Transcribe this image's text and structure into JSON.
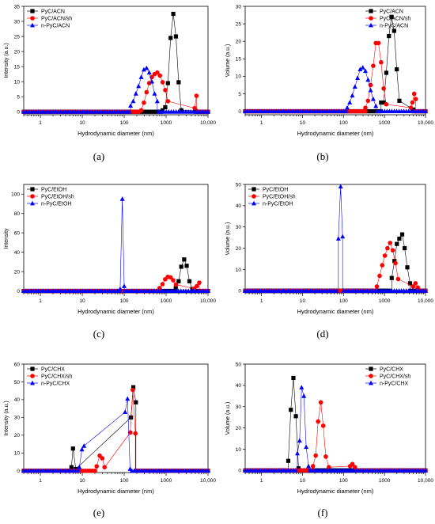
{
  "chart_data": [
    {
      "type": "scatter",
      "panel_label": "(a)",
      "xlabel": "Hydrodynamic diameter (nm)",
      "ylabel": "Intensity (a.u.)",
      "x_scale": "log",
      "xlim": [
        0.4,
        10000
      ],
      "ylim": [
        -1,
        35
      ],
      "x_ticks": [
        1,
        10,
        100,
        1000,
        10000
      ],
      "x_tick_labels": [
        "1",
        "10",
        "100",
        "1000",
        "10,000"
      ],
      "y_ticks": [
        0,
        5,
        10,
        15,
        20,
        25,
        30,
        35
      ],
      "legend_position": "top-left",
      "series": [
        {
          "name": "PyC/ACN",
          "color": "#000000",
          "marker": "square",
          "x": [
            825,
            955,
            1106,
            1281,
            1484,
            1718,
            1990,
            2305,
            5000
          ],
          "y": [
            0.5,
            1.5,
            9.5,
            24.5,
            32.5,
            25.0,
            9.8,
            0.5,
            0.3
          ]
        },
        {
          "name": "PyC/ACN/sh",
          "color": "#ff0000",
          "marker": "circle",
          "x": [
            255,
            295,
            342,
            396,
            458,
            531,
            615,
            712,
            825,
            955,
            1106,
            4800,
            5300
          ],
          "y": [
            0.5,
            3.0,
            6.5,
            9.5,
            11.5,
            12.5,
            13.0,
            12.0,
            9.8,
            7.2,
            3.5,
            1.2,
            5.3
          ]
        },
        {
          "name": "n-PyC/ACN",
          "color": "#0000ff",
          "marker": "triangle",
          "x": [
            142,
            164,
            190,
            220,
            255,
            295,
            342,
            396,
            458,
            531,
            615
          ],
          "y": [
            2.0,
            3.5,
            6.0,
            8.5,
            11.5,
            14.0,
            14.5,
            13.0,
            10.0,
            6.0,
            3.5
          ]
        }
      ]
    },
    {
      "type": "scatter",
      "panel_label": "(b)",
      "xlabel": "Hydrodynamic diameter (nm)",
      "ylabel": "Volume (a.u.)",
      "x_scale": "log",
      "xlim": [
        0.4,
        10000
      ],
      "ylim": [
        -1,
        30
      ],
      "x_ticks": [
        1,
        10,
        100,
        1000,
        10000
      ],
      "x_tick_labels": [
        "1",
        "10",
        "100",
        "1000",
        "10,000"
      ],
      "y_ticks": [
        0,
        5,
        10,
        15,
        20,
        25,
        30
      ],
      "legend_position": "top-right",
      "series": [
        {
          "name": "PyC/ACN",
          "color": "#000000",
          "marker": "square",
          "x": [
            825,
            955,
            1106,
            1281,
            1484,
            1718,
            1990,
            2305,
            5000
          ],
          "y": [
            2.5,
            2.5,
            11.0,
            21.5,
            27.0,
            23.0,
            12.0,
            3.0,
            0.5
          ]
        },
        {
          "name": "PyC/ACN/sh",
          "color": "#ff0000",
          "marker": "circle",
          "x": [
            342,
            396,
            458,
            531,
            615,
            712,
            825,
            955,
            1106,
            4400,
            4800,
            5300,
            5800
          ],
          "y": [
            1.0,
            3.0,
            7.5,
            13.0,
            19.5,
            19.5,
            14.0,
            6.5,
            2.0,
            1.0,
            2.5,
            5.0,
            3.5
          ]
        },
        {
          "name": "n-PyC/ACN",
          "color": "#0000ff",
          "marker": "triangle",
          "x": [
            123,
            142,
            164,
            190,
            220,
            255,
            295,
            342,
            396,
            458,
            531,
            615
          ],
          "y": [
            1.0,
            2.5,
            4.5,
            7.0,
            9.5,
            12.0,
            12.5,
            11.5,
            9.0,
            6.0,
            3.5,
            1.5
          ]
        }
      ]
    },
    {
      "type": "scatter",
      "panel_label": "(c)",
      "xlabel": "Hydrodynamic diameter (nm)",
      "ylabel": "Intensity",
      "x_scale": "log",
      "xlim": [
        0.4,
        10000
      ],
      "ylim": [
        -2,
        110
      ],
      "x_ticks": [
        1,
        10,
        100,
        1000,
        10000
      ],
      "x_tick_labels": [
        "1",
        "10",
        "100",
        "1000",
        "10,000"
      ],
      "y_ticks": [
        0,
        20,
        40,
        60,
        80,
        100
      ],
      "legend_position": "top-left",
      "series": [
        {
          "name": "PyC/EtOH",
          "color": "#000000",
          "marker": "square",
          "x": [
            1700,
            1990,
            2300,
            2700,
            3100,
            3600,
            4200
          ],
          "y": [
            3.0,
            10.0,
            25.0,
            32.5,
            26.0,
            10.0,
            2.0
          ]
        },
        {
          "name": "PyC/EtOH/sh",
          "color": "#ff0000",
          "marker": "circle",
          "x": [
            700,
            820,
            950,
            1100,
            1280,
            1480,
            1720,
            4700,
            5400,
            6200
          ],
          "y": [
            3.0,
            7.0,
            12.0,
            14.5,
            14.0,
            11.0,
            6.5,
            2.5,
            5.0,
            8.5
          ]
        },
        {
          "name": "n-PyC/EtOH",
          "color": "#0000ff",
          "marker": "triangle",
          "x": [
            80,
            90,
            100
          ],
          "y": [
            2.0,
            95.0,
            5.0
          ]
        }
      ]
    },
    {
      "type": "scatter",
      "panel_label": "(d)",
      "xlabel": "Hydrodynamic diameter (nm)",
      "ylabel": "Volume (a.u.)",
      "x_scale": "log",
      "xlim": [
        0.4,
        10000
      ],
      "ylim": [
        -1,
        50
      ],
      "x_ticks": [
        1,
        10,
        100,
        1000,
        10000
      ],
      "x_tick_labels": [
        "1",
        "10",
        "100",
        "1000",
        "10,000"
      ],
      "y_ticks": [
        0,
        10,
        20,
        30,
        40,
        50
      ],
      "legend_position": "top-left",
      "series": [
        {
          "name": "PyC/EtOH",
          "color": "#000000",
          "marker": "square",
          "x": [
            1500,
            1750,
            2000,
            2300,
            2700,
            3100,
            3600,
            4200
          ],
          "y": [
            6.0,
            14.0,
            22.0,
            24.5,
            26.5,
            20.0,
            11.0,
            3.5
          ]
        },
        {
          "name": "PyC/EtOH/sh",
          "color": "#ff0000",
          "marker": "circle",
          "x": [
            650,
            760,
            880,
            1020,
            1180,
            1370,
            1590,
            1850,
            2150,
            5000,
            5700,
            6500
          ],
          "y": [
            2.0,
            7.0,
            12.0,
            16.5,
            20.0,
            22.5,
            19.0,
            13.0,
            5.5,
            2.0,
            3.5,
            1.5
          ]
        },
        {
          "name": "n-PyC/EtOH",
          "color": "#0000ff",
          "marker": "triangle",
          "x": [
            75,
            85,
            95
          ],
          "y": [
            24.5,
            49.0,
            25.5
          ]
        }
      ]
    },
    {
      "type": "scatter",
      "panel_label": "(e)",
      "xlabel": "Hydrodynamic diameter (nm)",
      "ylabel": "Intensity (a.u.)",
      "x_scale": "log",
      "xlim": [
        0.4,
        10000
      ],
      "ylim": [
        -1,
        60
      ],
      "x_ticks": [
        1,
        10,
        100,
        1000,
        10000
      ],
      "x_tick_labels": [
        "1",
        "10",
        "100",
        "1000",
        "10,000"
      ],
      "y_ticks": [
        0,
        10,
        20,
        30,
        40,
        50,
        60
      ],
      "legend_position": "top-left",
      "series": [
        {
          "name": "PyC/CHX",
          "color": "#000000",
          "marker": "square",
          "x": [
            5.5,
            6.0,
            7.0,
            145,
            165,
            190
          ],
          "y": [
            2.0,
            12.5,
            1.0,
            30.0,
            47.0,
            38.5
          ]
        },
        {
          "name": "PyC/CHX/sh",
          "color": "#ff0000",
          "marker": "circle",
          "x": [
            22,
            26,
            30,
            34,
            140,
            160,
            185
          ],
          "y": [
            2.5,
            8.5,
            7.0,
            2.0,
            21.5,
            45.5,
            21.0
          ]
        },
        {
          "name": "n-PyC/CHX",
          "color": "#0000ff",
          "marker": "triangle",
          "x": [
            8.5,
            9.8,
            11.0,
            105,
            120,
            138
          ],
          "y": [
            2.0,
            12.0,
            14.0,
            33.0,
            40.5,
            1.0
          ]
        }
      ]
    },
    {
      "type": "scatter",
      "panel_label": "(f)",
      "xlabel": "Hydrodynamic diameter (nm)",
      "ylabel": "Volume (a.u.)",
      "x_scale": "log",
      "xlim": [
        0.4,
        10000
      ],
      "ylim": [
        -1,
        50
      ],
      "x_ticks": [
        1,
        10,
        100,
        1000,
        10000
      ],
      "x_tick_labels": [
        "1",
        "10",
        "100",
        "1000",
        "10,000"
      ],
      "y_ticks": [
        0,
        10,
        20,
        30,
        40,
        50
      ],
      "legend_position": "top-right",
      "series": [
        {
          "name": "PyC/CHX",
          "color": "#000000",
          "marker": "square",
          "x": [
            4.5,
            5.2,
            6.0,
            6.9,
            8.0
          ],
          "y": [
            4.5,
            28.5,
            43.5,
            25.5,
            1.0
          ]
        },
        {
          "name": "PyC/CHX/sh",
          "color": "#ff0000",
          "marker": "circle",
          "x": [
            18,
            21,
            24,
            28,
            32,
            37,
            44,
            145,
            165,
            190
          ],
          "y": [
            2.0,
            7.0,
            23.0,
            32.0,
            21.0,
            6.5,
            1.5,
            2.0,
            3.0,
            1.5
          ]
        },
        {
          "name": "n-PyC/CHX",
          "color": "#0000ff",
          "marker": "triangle",
          "x": [
            7.5,
            8.5,
            9.5,
            10.8,
            12.3,
            14.0
          ],
          "y": [
            8.0,
            14.0,
            39.0,
            35.0,
            11.0,
            2.0
          ]
        }
      ]
    }
  ]
}
